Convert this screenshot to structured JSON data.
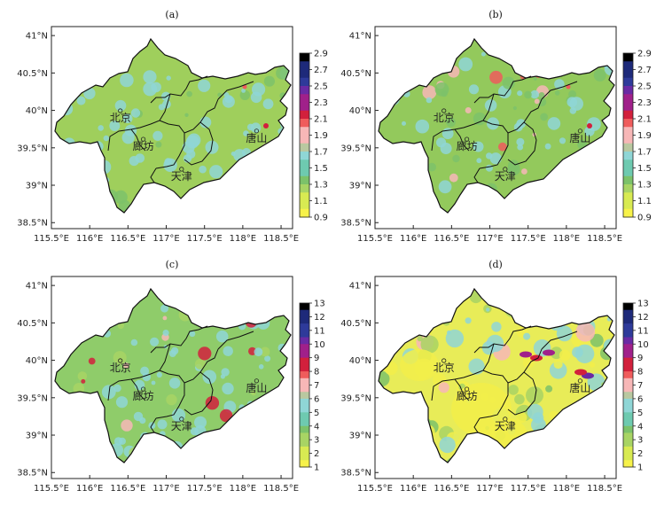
{
  "axis": {
    "x_ticks": [
      "115.5°E",
      "116°E",
      "116.5°E",
      "117°E",
      "117.5°E",
      "118°E",
      "118.5°E"
    ],
    "y_ticks": [
      "41°N",
      "40.5°N",
      "40°N",
      "39.5°N",
      "39°N",
      "38.5°N"
    ]
  },
  "cities": [
    {
      "name": "北京",
      "lon": 116.4,
      "lat": 39.9
    },
    {
      "name": "廊坊",
      "lon": 116.7,
      "lat": 39.52
    },
    {
      "name": "天津",
      "lon": 117.2,
      "lat": 39.12
    },
    {
      "name": "唐山",
      "lon": 118.18,
      "lat": 39.63
    }
  ],
  "panels": [
    {
      "label": "(a)",
      "colorbar_ticks": [
        "2.9",
        "2.7",
        "2.5",
        "2.3",
        "2.1",
        "1.9",
        "1.7",
        "1.5",
        "1.3",
        "1.1",
        "0.9"
      ],
      "base": "#9fcf5c",
      "scheme": "a"
    },
    {
      "label": "(b)",
      "colorbar_ticks": [
        "2.9",
        "2.7",
        "2.5",
        "2.3",
        "2.1",
        "1.9",
        "1.7",
        "1.5",
        "1.3",
        "1.1",
        "0.9"
      ],
      "base": "#93c95c",
      "scheme": "b"
    },
    {
      "label": "(c)",
      "colorbar_ticks": [
        "13",
        "12",
        "11",
        "10",
        "9",
        "8",
        "7",
        "6",
        "5",
        "4",
        "3",
        "2",
        "1"
      ],
      "base": "#8fcc6a",
      "scheme": "c"
    },
    {
      "label": "(d)",
      "colorbar_ticks": [
        "13",
        "12",
        "11",
        "10",
        "9",
        "8",
        "7",
        "6",
        "5",
        "4",
        "3",
        "2",
        "1"
      ],
      "base": "#e8ec58",
      "scheme": "d"
    }
  ],
  "colors": {
    "ramp": [
      "#f7f24a",
      "#d8ea52",
      "#a8d464",
      "#7cc26a",
      "#6ecab0",
      "#8fd6d6",
      "#b9c8a0",
      "#f7b7b7",
      "#ef5c5c",
      "#d2203c",
      "#a0208a",
      "#6a2aa4",
      "#2e3a9a",
      "#1e2a7a",
      "#000000"
    ]
  }
}
